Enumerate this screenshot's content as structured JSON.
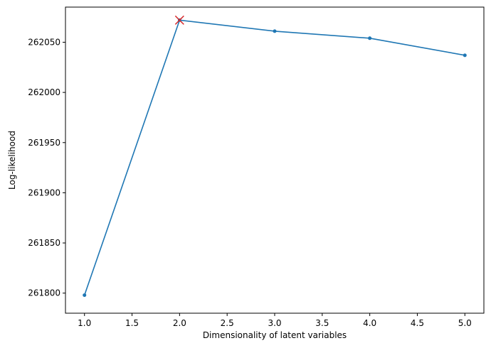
{
  "chart_data": {
    "type": "line",
    "title": "",
    "xlabel": "Dimensionality of latent variables",
    "ylabel": "Log-likelihood",
    "xlim": [
      0.8,
      5.2
    ],
    "ylim": [
      261780,
      262085
    ],
    "xticks": [
      1.0,
      1.5,
      2.0,
      2.5,
      3.0,
      3.5,
      4.0,
      4.5,
      5.0
    ],
    "xtick_labels": [
      "1.0",
      "1.5",
      "2.0",
      "2.5",
      "3.0",
      "3.5",
      "4.0",
      "4.5",
      "5.0"
    ],
    "yticks": [
      261800,
      261850,
      261900,
      261950,
      262000,
      262050
    ],
    "ytick_labels": [
      "261800",
      "261850",
      "261900",
      "261950",
      "262000",
      "262050"
    ],
    "grid": false,
    "series": [
      {
        "x": [
          1,
          2,
          3,
          4,
          5
        ],
        "y": [
          261798,
          262072,
          262061,
          262054,
          262037
        ],
        "color": "#1f77b4",
        "marker": "point"
      }
    ],
    "highlight": {
      "x": 2,
      "y": 262072,
      "marker": "x",
      "color": "#d62728"
    }
  }
}
